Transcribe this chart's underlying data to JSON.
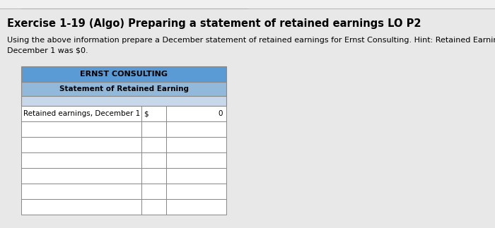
{
  "title": "Exercise 1-19 (Algo) Preparing a statement of retained earnings LO P2",
  "description_line1": "Using the above information prepare a December statement of retained earnings for Ernst Consulting. Hint: Retained Earnings on",
  "description_line2": "December 1 was $0.",
  "company_name": "ERNST CONSULTING",
  "statement_title": "Statement of Retained Earning",
  "table_header_bg": "#5b9bd5",
  "table_subheader_bg": "#92b9d9",
  "table_row_bg_light": "#c8d8eb",
  "table_row_bg_white": "#ffffff",
  "table_border": "#888888",
  "bg_color": "#e8e8e8",
  "top_bar_color": "#c0c0c0",
  "title_fontsize": 10.5,
  "body_fontsize": 8.0,
  "table_fontsize": 7.5,
  "rows": [
    {
      "label": "Retained earnings, December 1",
      "col2": "$",
      "col3": "0",
      "bg": "#ffffff"
    },
    {
      "label": "",
      "col2": "",
      "col3": "",
      "bg": "#ffffff"
    },
    {
      "label": "",
      "col2": "",
      "col3": "",
      "bg": "#ffffff"
    },
    {
      "label": "",
      "col2": "",
      "col3": "",
      "bg": "#ffffff"
    },
    {
      "label": "",
      "col2": "",
      "col3": "",
      "bg": "#ffffff"
    },
    {
      "label": "",
      "col2": "",
      "col3": "",
      "bg": "#ffffff"
    },
    {
      "label": "",
      "col2": "",
      "col3": "",
      "bg": "#ffffff"
    }
  ]
}
